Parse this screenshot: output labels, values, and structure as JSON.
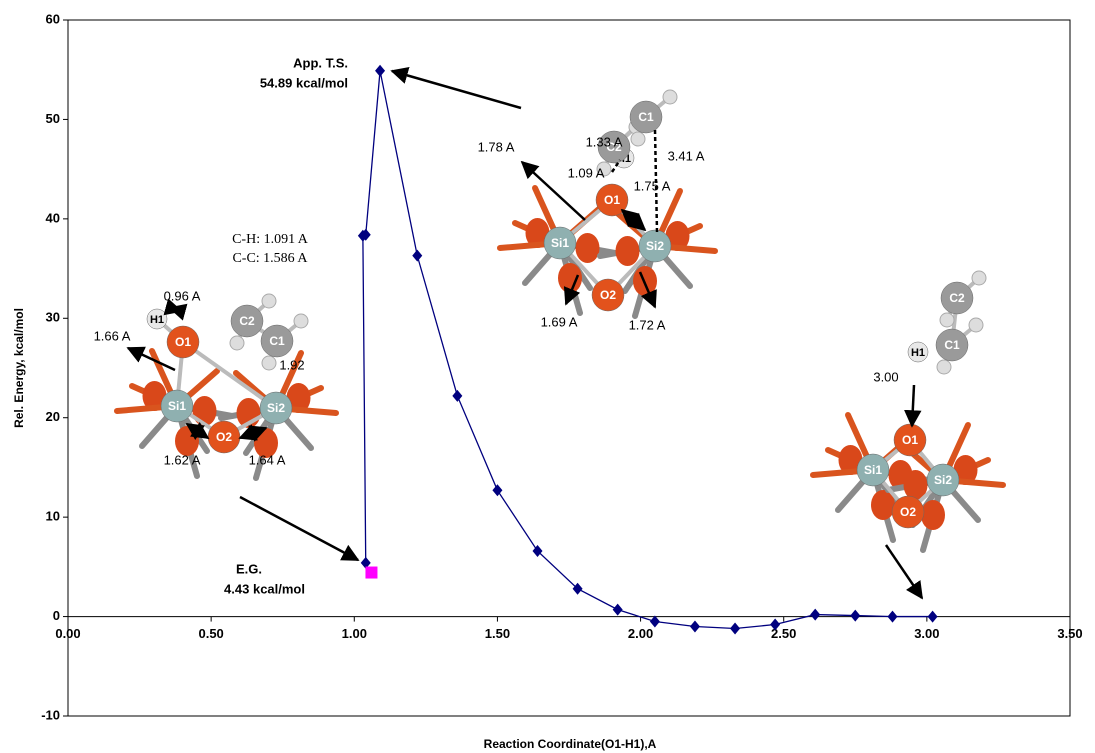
{
  "chart_data": {
    "type": "line",
    "x_label": "Reaction Coordinate(O1-H1),A",
    "y_label": "Rel. Energy, kcal/mol",
    "xlim": [
      0,
      3.5
    ],
    "ylim": [
      -10,
      60
    ],
    "xticks": [
      {
        "value": 0,
        "label": "0.00"
      },
      {
        "value": 0.5,
        "label": "0.50"
      },
      {
        "value": 1,
        "label": "1.00"
      },
      {
        "value": 1.5,
        "label": "1.50"
      },
      {
        "value": 2,
        "label": "2.00"
      },
      {
        "value": 2.5,
        "label": "2.50"
      },
      {
        "value": 3,
        "label": "3.00"
      },
      {
        "value": 3.5,
        "label": "3.50"
      }
    ],
    "yticks": [
      -10,
      0,
      10,
      20,
      30,
      40,
      50,
      60
    ],
    "series": [
      {
        "color": "#00007f",
        "x": [
          1.04,
          1.03,
          1.04,
          1.09,
          1.22,
          1.36,
          1.5,
          1.64,
          1.78,
          1.92,
          2.05,
          2.19,
          2.33,
          2.47,
          2.61,
          2.75,
          2.88,
          3.02
        ],
        "values": [
          5.4,
          38.3,
          38.4,
          54.89,
          36.3,
          22.2,
          12.7,
          6.6,
          2.8,
          0.7,
          -0.5,
          -1.0,
          -1.2,
          -0.8,
          0.2,
          0.1,
          0.0,
          0.0
        ]
      },
      {
        "color": "#ff00ff",
        "marker": "square",
        "x": [
          1.06
        ],
        "values": [
          4.43
        ]
      }
    ],
    "annotations": [
      "App. T.S.",
      "54.89 kcal/mol",
      "E.G.",
      "4.43 kcal/mol"
    ],
    "molecules": [
      {
        "atoms": [
          "H1",
          "O1",
          "C2",
          "C1",
          "Si1",
          "O2",
          "Si2"
        ],
        "distances": [
          "0.96 A",
          "1.66 A",
          "1.92",
          "1.62 A",
          "1.64 A"
        ],
        "notes": [
          "C-H: 1.091 A",
          "C-C: 1.586 A"
        ]
      },
      {
        "atoms": [
          "H1",
          "O1",
          "C2",
          "C1",
          "Si1",
          "O2",
          "Si2"
        ],
        "distances": [
          "1.33 A",
          "3.41 A",
          "1.78 A",
          "1.09 A",
          "1.75 A",
          "1.69 A",
          "1.72 A"
        ]
      },
      {
        "atoms": [
          "H1",
          "O1",
          "C2",
          "C1",
          "Si1",
          "O2",
          "Si2"
        ],
        "distances": [
          "3.00"
        ]
      }
    ]
  }
}
